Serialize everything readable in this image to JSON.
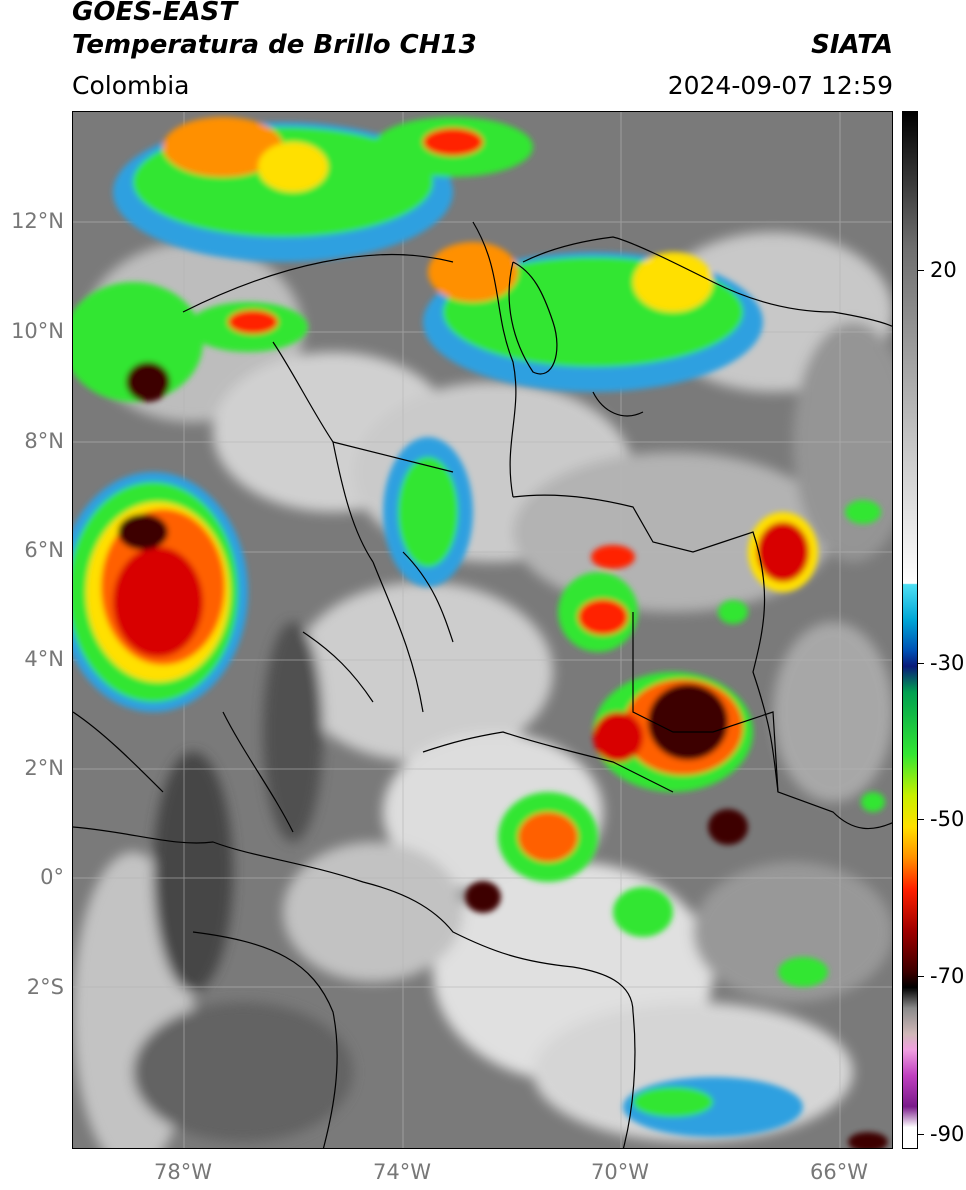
{
  "header": {
    "title_line1": "GOES-EAST",
    "title_line2": "Temperatura de Brillo CH13",
    "organization": "SIATA",
    "region": "Colombia",
    "datetime": "2024-09-07 12:59"
  },
  "map": {
    "lat_labels": [
      "12°N",
      "10°N",
      "8°N",
      "6°N",
      "4°N",
      "2°N",
      "0°",
      "2°S"
    ],
    "lon_labels": [
      "78°W",
      "74°W",
      "70°W",
      "66°W"
    ]
  },
  "colorbar": {
    "tick_labels": [
      "20",
      "-30",
      "-50",
      "-70",
      "-90"
    ],
    "colors": {
      "warm": "#ffffff",
      "cyan": "#4fe0f4",
      "blue": "#0050b4",
      "green": "#33e633",
      "yellow": "#ffe000",
      "orange": "#ff9000",
      "red": "#ff2000",
      "black": "#000000",
      "pink": "#f0a0e0",
      "purple": "#7a1a8a"
    }
  },
  "colors": {
    "background_gray": "#7a7a7a",
    "label_gray": "#777777"
  }
}
